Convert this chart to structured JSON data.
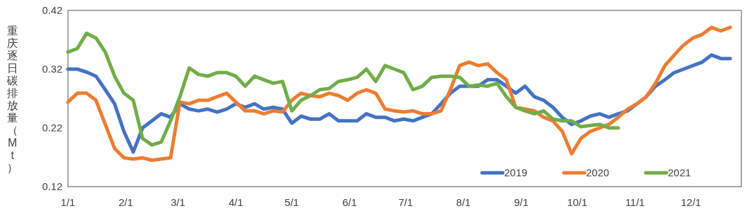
{
  "chart_data": {
    "type": "line",
    "ylabel": "重庆逐日碳排放量（Mt）",
    "x": [
      "--01-01",
      "--01-06",
      "--01-11",
      "--01-16",
      "--01-21",
      "--01-26",
      "--01-31",
      "--02-05",
      "--02-10",
      "--02-15",
      "--02-20",
      "--02-25",
      "--03-02",
      "--03-07",
      "--03-12",
      "--03-17",
      "--03-22",
      "--03-27",
      "--04-01",
      "--04-06",
      "--04-11",
      "--04-16",
      "--04-21",
      "--04-26",
      "--05-01",
      "--05-06",
      "--05-11",
      "--05-16",
      "--05-21",
      "--05-26",
      "--05-31",
      "--06-05",
      "--06-10",
      "--06-15",
      "--06-20",
      "--06-25",
      "--06-30",
      "--07-05",
      "--07-10",
      "--07-15",
      "--07-20",
      "--07-25",
      "--07-30",
      "--08-04",
      "--08-09",
      "--08-14",
      "--08-19",
      "--08-24",
      "--08-29",
      "--09-03",
      "--09-08",
      "--09-13",
      "--09-18",
      "--09-23",
      "--09-28",
      "--10-03",
      "--10-08",
      "--10-13",
      "--10-18",
      "--10-23",
      "--10-28",
      "--11-02",
      "--11-07",
      "--11-12",
      "--11-17",
      "--11-22",
      "--11-27",
      "--12-02",
      "--12-07",
      "--12-12",
      "--12-17",
      "--12-22"
    ],
    "series": [
      {
        "name": "2019",
        "color": "#4472c4",
        "values": [
          0.32,
          0.32,
          0.315,
          0.308,
          0.285,
          0.261,
          0.214,
          0.179,
          0.22,
          0.232,
          0.244,
          0.238,
          0.261,
          0.252,
          0.249,
          0.252,
          0.247,
          0.252,
          0.261,
          0.255,
          0.261,
          0.252,
          0.255,
          0.252,
          0.228,
          0.24,
          0.235,
          0.235,
          0.244,
          0.232,
          0.232,
          0.232,
          0.244,
          0.238,
          0.238,
          0.232,
          0.235,
          0.232,
          0.238,
          0.244,
          0.261,
          0.279,
          0.291,
          0.291,
          0.291,
          0.302,
          0.302,
          0.291,
          0.279,
          0.291,
          0.273,
          0.267,
          0.255,
          0.238,
          0.226,
          0.232,
          0.24,
          0.244,
          0.238,
          0.244,
          0.249,
          0.261,
          0.273,
          0.291,
          0.302,
          0.314,
          0.32,
          0.326,
          0.332,
          0.344,
          0.338,
          0.338
        ]
      },
      {
        "name": "2020",
        "color": "#ed7d31",
        "values": [
          0.264,
          0.279,
          0.279,
          0.267,
          0.226,
          0.185,
          0.169,
          0.167,
          0.169,
          0.165,
          0.167,
          0.169,
          0.264,
          0.261,
          0.267,
          0.267,
          0.273,
          0.279,
          0.264,
          0.249,
          0.249,
          0.244,
          0.249,
          0.247,
          0.267,
          0.279,
          0.275,
          0.273,
          0.279,
          0.275,
          0.267,
          0.279,
          0.285,
          0.279,
          0.252,
          0.249,
          0.247,
          0.249,
          0.244,
          0.244,
          0.249,
          0.285,
          0.326,
          0.332,
          0.326,
          0.329,
          0.314,
          0.302,
          0.255,
          0.252,
          0.249,
          0.238,
          0.232,
          0.214,
          0.176,
          0.202,
          0.214,
          0.22,
          0.226,
          0.238,
          0.252,
          0.261,
          0.273,
          0.296,
          0.326,
          0.344,
          0.361,
          0.373,
          0.379,
          0.391,
          0.385,
          0.391
        ]
      },
      {
        "name": "2021",
        "color": "#70ad47",
        "values": [
          0.349,
          0.355,
          0.381,
          0.373,
          0.349,
          0.308,
          0.279,
          0.267,
          0.202,
          0.191,
          0.196,
          0.232,
          0.273,
          0.322,
          0.311,
          0.308,
          0.314,
          0.314,
          0.308,
          0.291,
          0.308,
          0.302,
          0.296,
          0.299,
          0.249,
          0.267,
          0.275,
          0.285,
          0.287,
          0.299,
          0.302,
          0.306,
          0.32,
          0.299,
          0.326,
          0.32,
          0.314,
          0.285,
          0.291,
          0.306,
          0.308,
          0.308,
          0.306,
          0.291,
          0.293,
          0.291,
          0.296,
          0.273,
          0.255,
          0.249,
          0.244,
          0.249,
          0.235,
          0.232,
          0.232,
          0.222,
          0.224,
          0.226,
          0.22,
          0.22,
          null,
          null,
          null,
          null,
          null,
          null,
          null,
          null,
          null,
          null,
          null,
          null
        ]
      }
    ],
    "xlim": [
      "--01-01",
      "--12-28"
    ],
    "xticks": [
      {
        "value": "--01-01",
        "label": "1/1"
      },
      {
        "value": "--02-01",
        "label": "2/1"
      },
      {
        "value": "--03-01",
        "label": "3/1"
      },
      {
        "value": "--04-01",
        "label": "4/1"
      },
      {
        "value": "--05-01",
        "label": "5/1"
      },
      {
        "value": "--06-01",
        "label": "6/1"
      },
      {
        "value": "--07-01",
        "label": "7/1"
      },
      {
        "value": "--08-01",
        "label": "8/1"
      },
      {
        "value": "--09-01",
        "label": "9/1"
      },
      {
        "value": "--10-01",
        "label": "10/1"
      },
      {
        "value": "--11-01",
        "label": "11/1"
      },
      {
        "value": "--12-01",
        "label": "12/1"
      }
    ],
    "ylim": [
      0.12,
      0.42
    ],
    "yticks": [
      0.12,
      0.22,
      0.32,
      0.42
    ],
    "grid": false,
    "legend": "bottom right",
    "marker": "none",
    "line_style": "solid"
  }
}
